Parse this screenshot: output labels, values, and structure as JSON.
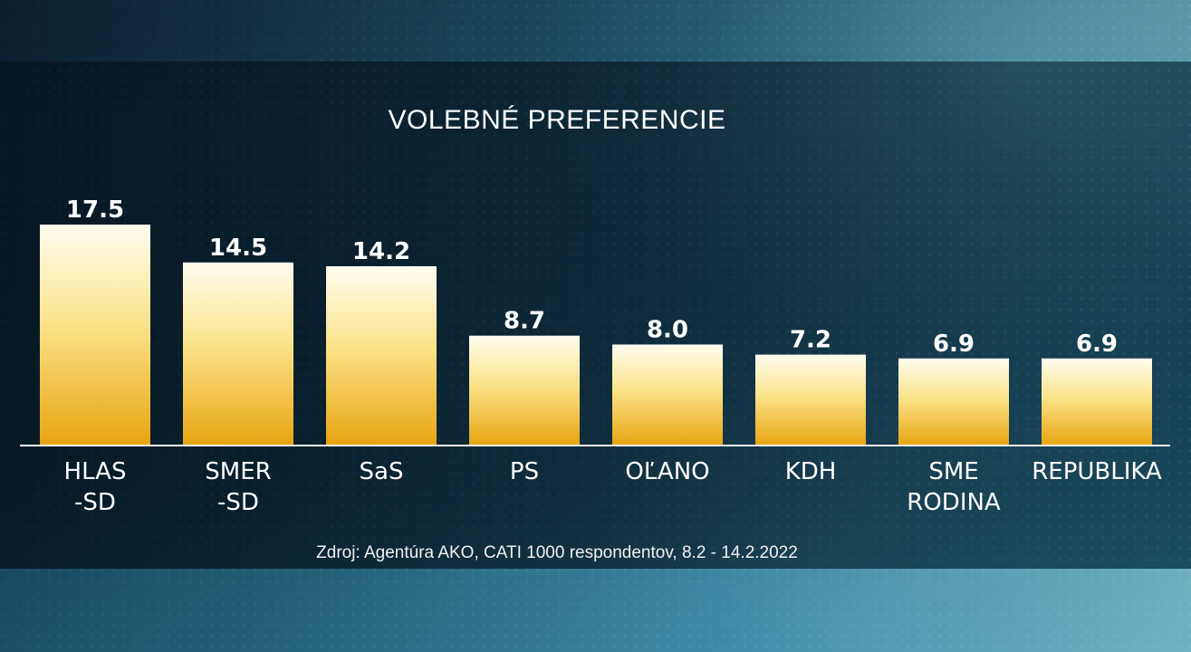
{
  "title": "VOLEBNÉ PREFERENCIE",
  "source": "Zdroj: Agentúra AKO, CATI 1000 respondentov, 8.2 - 14.2.2022",
  "colors": {
    "bar_top": "#fffdf0",
    "bar_mid": "#fbe38a",
    "bar_bottom": "#e8a410",
    "text": "#ffffff"
  },
  "chart_data": {
    "type": "bar",
    "categories": [
      [
        "HLAS",
        "-SD"
      ],
      [
        "SMER",
        "-SD"
      ],
      [
        "SaS"
      ],
      [
        "PS"
      ],
      [
        "OĽANO"
      ],
      [
        "KDH"
      ],
      [
        "SME",
        "RODINA"
      ],
      [
        "REPUBLIKA"
      ]
    ],
    "values": [
      17.5,
      14.5,
      14.2,
      8.7,
      8.0,
      7.2,
      6.9,
      6.9
    ],
    "value_labels": [
      "17.5",
      "14.5",
      "14.2",
      "8.7",
      "8.0",
      "7.2",
      "6.9",
      "6.9"
    ],
    "ylim": [
      0,
      17.5
    ],
    "grid": false,
    "legend": "none"
  }
}
